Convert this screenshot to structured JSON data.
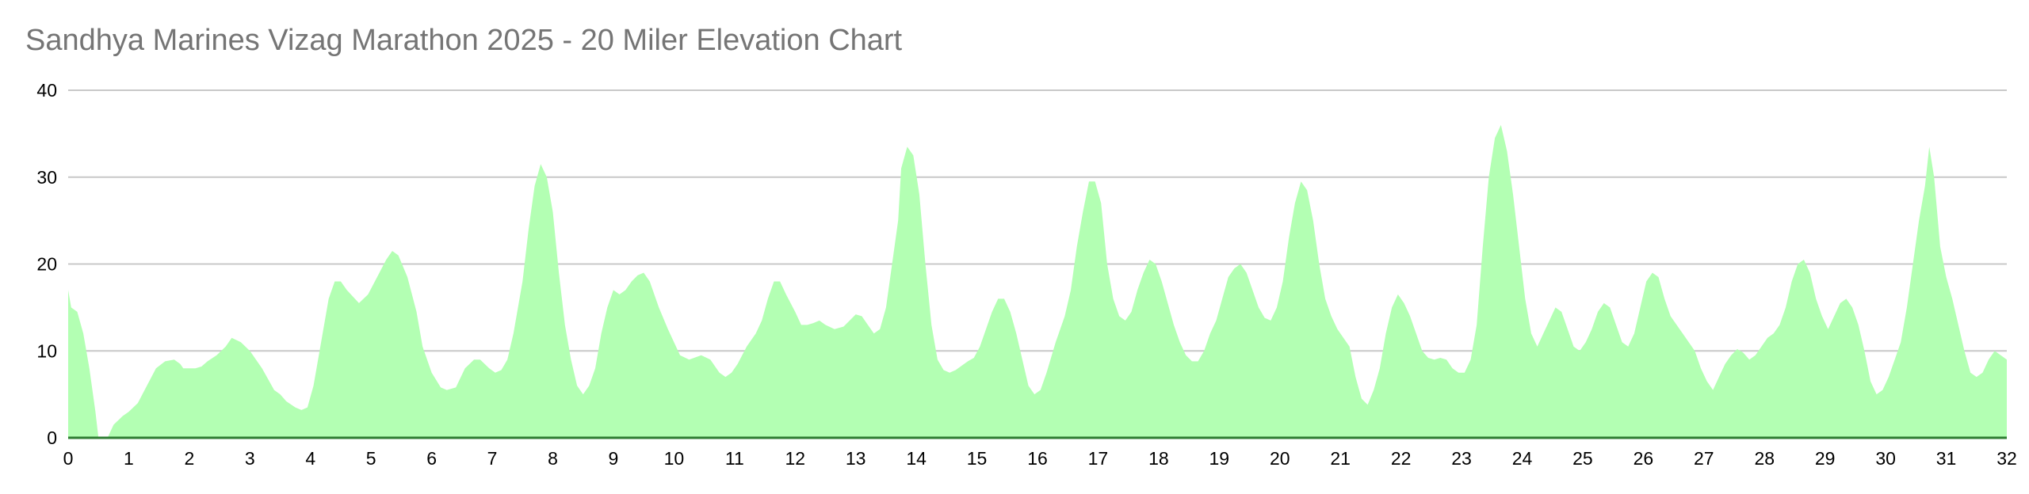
{
  "chart_data": {
    "type": "area",
    "title": "Sandhya Marines Vizag Marathon 2025 - 20 Miler Elevation Chart",
    "xlabel": "",
    "ylabel": "",
    "xlim": [
      0,
      32
    ],
    "ylim": [
      0,
      40
    ],
    "x_ticks": [
      0,
      1,
      2,
      3,
      4,
      5,
      6,
      7,
      8,
      9,
      10,
      11,
      12,
      13,
      14,
      15,
      16,
      17,
      18,
      19,
      20,
      21,
      22,
      23,
      24,
      25,
      26,
      27,
      28,
      29,
      30,
      31,
      32
    ],
    "y_ticks": [
      0,
      10,
      20,
      30,
      40
    ],
    "grid": true,
    "legend": "none",
    "colors": {
      "fill": "#b3ffb3",
      "baseline": "#2e7d32",
      "grid": "#c8c8c8",
      "title": "#757575"
    },
    "series": [
      {
        "points": [
          [
            0,
            17
          ],
          [
            0.05,
            15
          ],
          [
            0.15,
            14.5
          ],
          [
            0.25,
            12
          ],
          [
            0.35,
            8
          ],
          [
            0.45,
            3
          ],
          [
            0.5,
            0
          ],
          [
            0.65,
            0
          ],
          [
            0.75,
            1.5
          ],
          [
            0.9,
            2.5
          ],
          [
            1,
            3
          ],
          [
            1.15,
            4
          ],
          [
            1.3,
            6
          ],
          [
            1.45,
            8
          ],
          [
            1.6,
            8.8
          ],
          [
            1.75,
            9
          ],
          [
            1.85,
            8.5
          ],
          [
            1.9,
            8
          ],
          [
            2.1,
            8
          ],
          [
            2.2,
            8.2
          ],
          [
            2.3,
            8.8
          ],
          [
            2.45,
            9.5
          ],
          [
            2.6,
            10.5
          ],
          [
            2.7,
            11.5
          ],
          [
            2.85,
            11
          ],
          [
            3,
            10
          ],
          [
            3.2,
            8
          ],
          [
            3.4,
            5.5
          ],
          [
            3.5,
            5
          ],
          [
            3.6,
            4.2
          ],
          [
            3.75,
            3.5
          ],
          [
            3.85,
            3.2
          ],
          [
            3.95,
            3.5
          ],
          [
            4.05,
            6
          ],
          [
            4.15,
            10
          ],
          [
            4.3,
            16
          ],
          [
            4.4,
            18
          ],
          [
            4.5,
            18
          ],
          [
            4.6,
            17
          ],
          [
            4.8,
            15.5
          ],
          [
            4.95,
            16.5
          ],
          [
            5.1,
            18.5
          ],
          [
            5.25,
            20.5
          ],
          [
            5.35,
            21.5
          ],
          [
            5.45,
            21
          ],
          [
            5.6,
            18.5
          ],
          [
            5.75,
            14.5
          ],
          [
            5.85,
            10.5
          ],
          [
            6,
            7.5
          ],
          [
            6.15,
            5.8
          ],
          [
            6.25,
            5.5
          ],
          [
            6.4,
            5.8
          ],
          [
            6.55,
            8
          ],
          [
            6.7,
            9
          ],
          [
            6.8,
            9
          ],
          [
            6.95,
            8
          ],
          [
            7.05,
            7.5
          ],
          [
            7.15,
            7.8
          ],
          [
            7.25,
            9
          ],
          [
            7.35,
            12
          ],
          [
            7.5,
            18
          ],
          [
            7.6,
            24
          ],
          [
            7.7,
            29
          ],
          [
            7.8,
            31.5
          ],
          [
            7.9,
            30
          ],
          [
            8,
            26
          ],
          [
            8.1,
            19
          ],
          [
            8.2,
            13
          ],
          [
            8.3,
            9
          ],
          [
            8.4,
            6
          ],
          [
            8.5,
            5
          ],
          [
            8.6,
            6
          ],
          [
            8.7,
            8
          ],
          [
            8.8,
            12
          ],
          [
            8.9,
            15
          ],
          [
            9,
            17
          ],
          [
            9.1,
            16.5
          ],
          [
            9.2,
            17
          ],
          [
            9.3,
            18
          ],
          [
            9.4,
            18.7
          ],
          [
            9.5,
            19
          ],
          [
            9.6,
            18
          ],
          [
            9.75,
            15
          ],
          [
            9.9,
            12.5
          ],
          [
            10,
            11
          ],
          [
            10.1,
            9.5
          ],
          [
            10.25,
            9
          ],
          [
            10.45,
            9.5
          ],
          [
            10.6,
            9
          ],
          [
            10.75,
            7.5
          ],
          [
            10.85,
            7
          ],
          [
            10.95,
            7.5
          ],
          [
            11.05,
            8.5
          ],
          [
            11.2,
            10.5
          ],
          [
            11.35,
            12
          ],
          [
            11.45,
            13.5
          ],
          [
            11.55,
            16
          ],
          [
            11.65,
            18
          ],
          [
            11.75,
            18
          ],
          [
            11.85,
            16.5
          ],
          [
            12,
            14.5
          ],
          [
            12.1,
            13
          ],
          [
            12.2,
            13
          ],
          [
            12.3,
            13.2
          ],
          [
            12.4,
            13.5
          ],
          [
            12.5,
            13
          ],
          [
            12.65,
            12.5
          ],
          [
            12.8,
            12.8
          ],
          [
            12.9,
            13.5
          ],
          [
            13,
            14.2
          ],
          [
            13.1,
            14
          ],
          [
            13.2,
            13
          ],
          [
            13.3,
            12
          ],
          [
            13.4,
            12.5
          ],
          [
            13.5,
            15
          ],
          [
            13.6,
            20
          ],
          [
            13.7,
            25
          ],
          [
            13.75,
            31
          ],
          [
            13.85,
            33.5
          ],
          [
            13.95,
            32.5
          ],
          [
            14.05,
            28
          ],
          [
            14.15,
            20
          ],
          [
            14.25,
            13
          ],
          [
            14.35,
            9
          ],
          [
            14.45,
            7.8
          ],
          [
            14.55,
            7.5
          ],
          [
            14.65,
            7.8
          ],
          [
            14.75,
            8.3
          ],
          [
            14.85,
            8.8
          ],
          [
            14.95,
            9.2
          ],
          [
            15.05,
            10.5
          ],
          [
            15.15,
            12.5
          ],
          [
            15.25,
            14.5
          ],
          [
            15.35,
            16
          ],
          [
            15.45,
            16
          ],
          [
            15.55,
            14.5
          ],
          [
            15.65,
            12
          ],
          [
            15.75,
            9
          ],
          [
            15.85,
            6
          ],
          [
            15.95,
            5
          ],
          [
            16.05,
            5.5
          ],
          [
            16.15,
            7.5
          ],
          [
            16.3,
            11
          ],
          [
            16.45,
            14
          ],
          [
            16.55,
            17
          ],
          [
            16.65,
            22
          ],
          [
            16.75,
            26
          ],
          [
            16.85,
            29.5
          ],
          [
            16.95,
            29.5
          ],
          [
            17.05,
            27
          ],
          [
            17.15,
            20
          ],
          [
            17.25,
            16
          ],
          [
            17.35,
            14
          ],
          [
            17.45,
            13.5
          ],
          [
            17.55,
            14.5
          ],
          [
            17.65,
            17
          ],
          [
            17.75,
            19
          ],
          [
            17.85,
            20.5
          ],
          [
            17.95,
            20
          ],
          [
            18.05,
            18
          ],
          [
            18.15,
            15.5
          ],
          [
            18.25,
            13
          ],
          [
            18.35,
            11
          ],
          [
            18.45,
            9.5
          ],
          [
            18.55,
            8.8
          ],
          [
            18.65,
            8.8
          ],
          [
            18.75,
            10
          ],
          [
            18.85,
            12
          ],
          [
            18.95,
            13.5
          ],
          [
            19.05,
            16
          ],
          [
            19.15,
            18.5
          ],
          [
            19.25,
            19.5
          ],
          [
            19.35,
            20
          ],
          [
            19.45,
            19
          ],
          [
            19.55,
            17
          ],
          [
            19.65,
            15
          ],
          [
            19.75,
            13.8
          ],
          [
            19.85,
            13.5
          ],
          [
            19.95,
            15
          ],
          [
            20.05,
            18
          ],
          [
            20.15,
            23
          ],
          [
            20.25,
            27
          ],
          [
            20.35,
            29.5
          ],
          [
            20.45,
            28.5
          ],
          [
            20.55,
            25
          ],
          [
            20.65,
            20
          ],
          [
            20.75,
            16
          ],
          [
            20.85,
            14
          ],
          [
            20.95,
            12.5
          ],
          [
            21.05,
            11.5
          ],
          [
            21.15,
            10.5
          ],
          [
            21.25,
            7
          ],
          [
            21.35,
            4.5
          ],
          [
            21.45,
            3.8
          ],
          [
            21.55,
            5.5
          ],
          [
            21.65,
            8
          ],
          [
            21.75,
            12
          ],
          [
            21.85,
            15
          ],
          [
            21.95,
            16.5
          ],
          [
            22.05,
            15.5
          ],
          [
            22.15,
            14
          ],
          [
            22.25,
            12
          ],
          [
            22.35,
            10
          ],
          [
            22.45,
            9.2
          ],
          [
            22.55,
            9
          ],
          [
            22.65,
            9.2
          ],
          [
            22.75,
            9
          ],
          [
            22.85,
            8
          ],
          [
            22.95,
            7.5
          ],
          [
            23.05,
            7.5
          ],
          [
            23.15,
            9
          ],
          [
            23.25,
            13
          ],
          [
            23.35,
            22
          ],
          [
            23.45,
            30
          ],
          [
            23.55,
            34.5
          ],
          [
            23.65,
            36
          ],
          [
            23.75,
            33
          ],
          [
            23.85,
            28
          ],
          [
            23.95,
            22
          ],
          [
            24.05,
            16
          ],
          [
            24.15,
            12
          ],
          [
            24.25,
            10.5
          ],
          [
            24.35,
            12
          ],
          [
            24.45,
            13.5
          ],
          [
            24.55,
            15
          ],
          [
            24.65,
            14.5
          ],
          [
            24.75,
            12.5
          ],
          [
            24.85,
            10.5
          ],
          [
            24.95,
            10
          ],
          [
            25.05,
            11
          ],
          [
            25.15,
            12.5
          ],
          [
            25.25,
            14.5
          ],
          [
            25.35,
            15.5
          ],
          [
            25.45,
            15
          ],
          [
            25.55,
            13
          ],
          [
            25.65,
            11
          ],
          [
            25.75,
            10.5
          ],
          [
            25.85,
            12
          ],
          [
            25.95,
            15
          ],
          [
            26.05,
            18
          ],
          [
            26.15,
            19
          ],
          [
            26.25,
            18.5
          ],
          [
            26.35,
            16
          ],
          [
            26.45,
            14
          ],
          [
            26.55,
            13
          ],
          [
            26.65,
            12
          ],
          [
            26.75,
            11
          ],
          [
            26.85,
            10
          ],
          [
            26.95,
            8
          ],
          [
            27.05,
            6.5
          ],
          [
            27.15,
            5.5
          ],
          [
            27.25,
            7
          ],
          [
            27.35,
            8.5
          ],
          [
            27.45,
            9.5
          ],
          [
            27.55,
            10.2
          ],
          [
            27.65,
            9.8
          ],
          [
            27.75,
            9
          ],
          [
            27.85,
            9.5
          ],
          [
            27.95,
            10.5
          ],
          [
            28.05,
            11.5
          ],
          [
            28.15,
            12
          ],
          [
            28.25,
            13
          ],
          [
            28.35,
            15
          ],
          [
            28.45,
            18
          ],
          [
            28.55,
            20
          ],
          [
            28.65,
            20.5
          ],
          [
            28.75,
            19
          ],
          [
            28.85,
            16
          ],
          [
            28.95,
            14
          ],
          [
            29.05,
            12.5
          ],
          [
            29.15,
            14
          ],
          [
            29.25,
            15.5
          ],
          [
            29.35,
            16
          ],
          [
            29.45,
            15
          ],
          [
            29.55,
            13
          ],
          [
            29.65,
            10
          ],
          [
            29.75,
            6.5
          ],
          [
            29.85,
            5
          ],
          [
            29.95,
            5.5
          ],
          [
            30.05,
            7
          ],
          [
            30.15,
            9
          ],
          [
            30.25,
            11
          ],
          [
            30.35,
            15
          ],
          [
            30.45,
            20
          ],
          [
            30.55,
            25
          ],
          [
            30.65,
            29
          ],
          [
            30.72,
            33.5
          ],
          [
            30.8,
            30
          ],
          [
            30.9,
            22
          ],
          [
            31,
            18.5
          ],
          [
            31.1,
            16
          ],
          [
            31.2,
            13
          ],
          [
            31.3,
            10
          ],
          [
            31.4,
            7.5
          ],
          [
            31.5,
            7
          ],
          [
            31.6,
            7.5
          ],
          [
            31.7,
            9
          ],
          [
            31.8,
            10
          ],
          [
            31.9,
            9.5
          ],
          [
            32,
            9
          ]
        ]
      }
    ]
  }
}
